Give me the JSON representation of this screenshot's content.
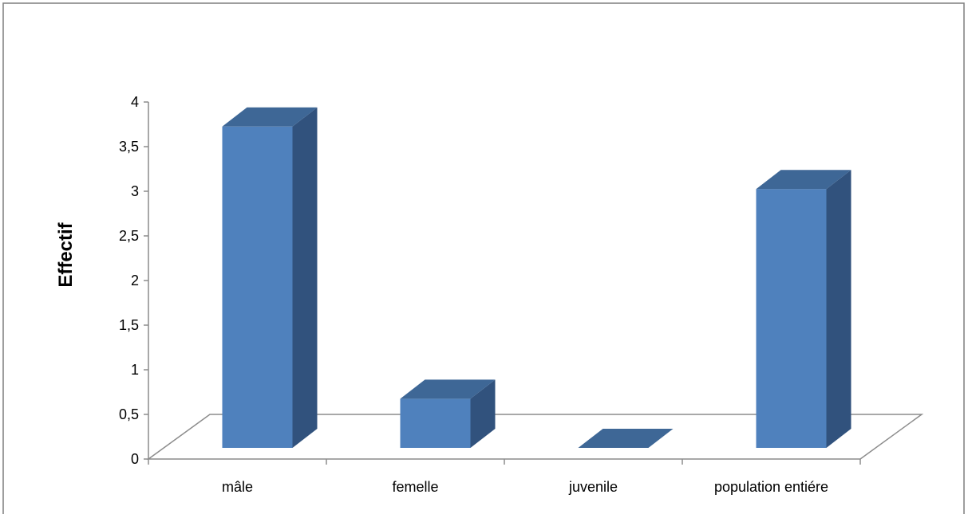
{
  "chart_data": {
    "type": "bar",
    "three_d": true,
    "categories": [
      "mâle",
      "femelle",
      "juvenile",
      "population entiére"
    ],
    "values": [
      3.6,
      0.55,
      0,
      2.9
    ],
    "title": "",
    "xlabel": "",
    "ylabel": "Effectif",
    "ylim": [
      0,
      4
    ],
    "yticks": [
      "0",
      "0,5",
      "1",
      "1,5",
      "2",
      "2,5",
      "3",
      "3,5",
      "4"
    ],
    "grid": false,
    "legend": "none",
    "colors": {
      "bar_front": "#4F81BD",
      "bar_side": "#31527D",
      "bar_top": "#3E6796",
      "axis": "#8C8C8C",
      "frame": "#7F7F7F"
    }
  }
}
